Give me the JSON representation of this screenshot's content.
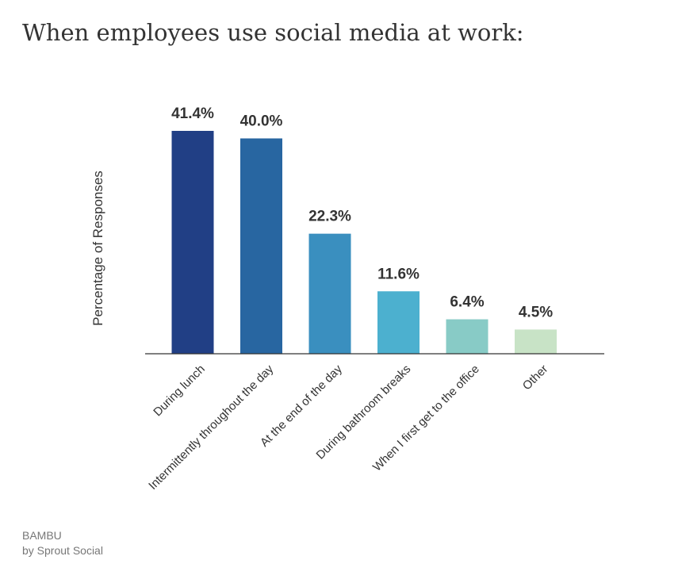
{
  "chart_data": {
    "type": "bar",
    "title": "When employees use social media at work:",
    "xlabel": "",
    "ylabel": "Percentage of Responses",
    "categories": [
      "During lunch",
      "Intermittently throughout the day",
      "At the end of the day",
      "During bathroom breaks",
      "When I first get to the office",
      "Other"
    ],
    "values": [
      41.4,
      40.0,
      22.3,
      11.6,
      6.4,
      4.5
    ],
    "value_labels": [
      "41.4%",
      "40.0%",
      "22.3%",
      "11.6%",
      "6.4%",
      "4.5%"
    ],
    "colors": [
      "#213f85",
      "#2866a1",
      "#3a8fbf",
      "#4cb0cf",
      "#88cbc6",
      "#c8e3c6"
    ],
    "ylim": [
      0,
      41.4
    ],
    "grid": false,
    "legend": "none"
  },
  "footer": {
    "brand": "BAMBU",
    "byline": "by Sprout Social"
  }
}
